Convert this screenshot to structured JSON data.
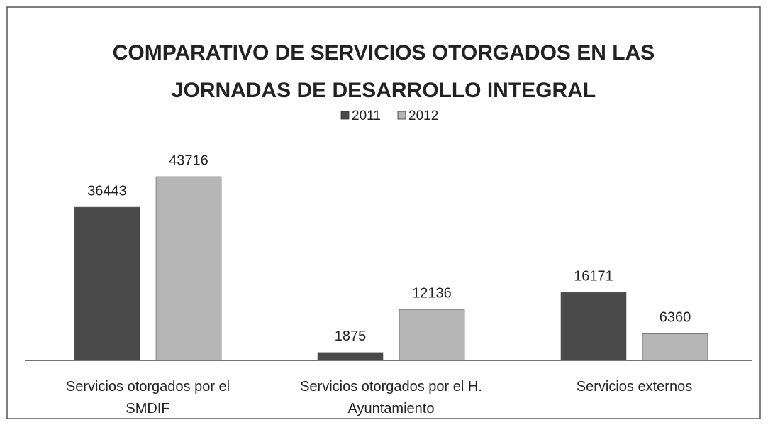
{
  "chart_data": {
    "type": "bar",
    "title": "COMPARATIVO DE SERVICIOS OTORGADOS EN  LAS JORNADAS DE DESARROLLO INTEGRAL",
    "categories": [
      "Servicios otorgados por el SMDIF",
      "Servicios otorgados por el H. Ayuntamiento",
      "Servicios externos"
    ],
    "series": [
      {
        "name": "2011",
        "color": "#4a4a4a",
        "values": [
          36443,
          1875,
          16171
        ]
      },
      {
        "name": "2012",
        "color": "#b5b5b5",
        "values": [
          43716,
          12136,
          6360
        ]
      }
    ],
    "legend": "top"
  }
}
